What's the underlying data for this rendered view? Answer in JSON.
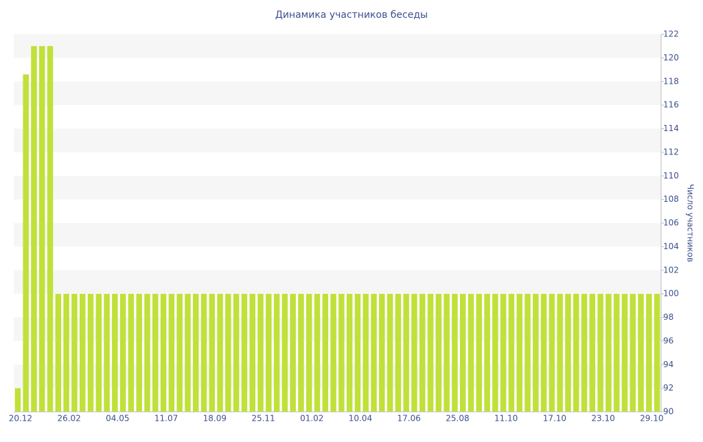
{
  "chart_data": {
    "type": "bar",
    "title": "Динамика участников беседы",
    "y_label": "Число участников",
    "categories": [
      "20.12",
      null,
      null,
      null,
      null,
      null,
      "26.02",
      null,
      null,
      null,
      null,
      null,
      "04.05",
      null,
      null,
      null,
      null,
      null,
      "11.07",
      null,
      null,
      null,
      null,
      null,
      "18.09",
      null,
      null,
      null,
      null,
      null,
      "25.11",
      null,
      null,
      null,
      null,
      null,
      "01.02",
      null,
      null,
      null,
      null,
      null,
      "10.04",
      null,
      null,
      null,
      null,
      null,
      "17.06",
      null,
      null,
      null,
      null,
      null,
      "25.08",
      null,
      null,
      null,
      null,
      null,
      "11.10",
      null,
      null,
      null,
      null,
      null,
      "17.10",
      null,
      null,
      null,
      null,
      null,
      "23.10",
      null,
      null,
      null,
      null,
      null,
      "29.10",
      null
    ],
    "values": [
      92,
      118.6,
      121,
      121,
      121,
      100,
      100,
      100,
      100,
      100,
      100,
      100,
      100,
      100,
      100,
      100,
      100,
      100,
      100,
      100,
      100,
      100,
      100,
      100,
      100,
      100,
      100,
      100,
      100,
      100,
      100,
      100,
      100,
      100,
      100,
      100,
      100,
      100,
      100,
      100,
      100,
      100,
      100,
      100,
      100,
      100,
      100,
      100,
      100,
      100,
      100,
      100,
      100,
      100,
      100,
      100,
      100,
      100,
      100,
      100,
      100,
      100,
      100,
      100,
      100,
      100,
      100,
      100,
      100,
      100,
      100,
      100,
      100,
      100,
      100,
      100,
      100,
      100,
      100,
      100
    ],
    "color": "#c0e03a",
    "ylim": [
      90,
      122
    ],
    "yticks": [
      90,
      92,
      94,
      96,
      98,
      100,
      102,
      104,
      106,
      108,
      110,
      112,
      114,
      116,
      118,
      120,
      122
    ],
    "grid": true,
    "grid_color": "#f6f6f6"
  }
}
